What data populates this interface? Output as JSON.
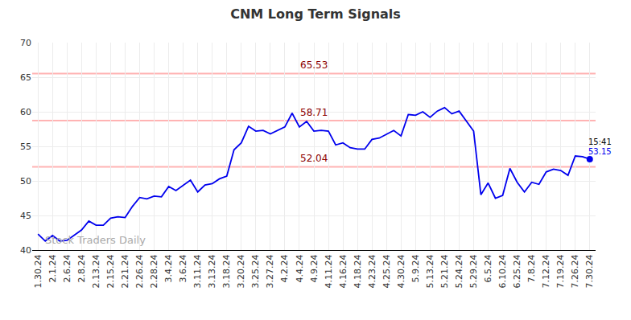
{
  "chart_data": {
    "type": "line",
    "title": "CNM Long Term Signals",
    "categories": [
      "1.30.24",
      null,
      "2.1.24",
      null,
      "2.6.24",
      null,
      "2.8.24",
      null,
      "2.13.24",
      null,
      "2.15.24",
      null,
      "2.21.24",
      null,
      "2.26.24",
      null,
      "2.28.24",
      null,
      "3.4.24",
      null,
      "3.6.24",
      null,
      "3.11.24",
      null,
      "3.13.24",
      null,
      "3.18.24",
      null,
      "3.20.24",
      null,
      "3.25.24",
      null,
      "3.27.24",
      null,
      "4.2.24",
      null,
      "4.4.24",
      null,
      "4.9.24",
      null,
      "4.11.24",
      null,
      "4.16.24",
      null,
      "4.18.24",
      null,
      "4.23.24",
      null,
      "4.25.24",
      null,
      "4.30.24",
      null,
      "5.9.24",
      null,
      "5.13.24",
      null,
      "5.21.24",
      null,
      "5.24.24",
      null,
      "5.29.24",
      null,
      "6.5.24",
      null,
      "6.10.24",
      null,
      "6.25.24",
      null,
      "7.8.24",
      null,
      "7.12.24",
      null,
      "7.19.24",
      null,
      "7.26.24",
      null,
      "7.30.24"
    ],
    "values": [
      42.3,
      41.3,
      42.1,
      41.3,
      41.4,
      42.1,
      42.9,
      44.2,
      43.6,
      43.6,
      44.6,
      44.8,
      44.7,
      46.3,
      47.6,
      47.4,
      47.8,
      47.7,
      49.2,
      48.6,
      49.4,
      50.1,
      48.4,
      49.4,
      49.6,
      50.3,
      50.7,
      54.5,
      55.5,
      57.9,
      57.2,
      57.3,
      56.8,
      57.3,
      57.8,
      59.8,
      57.8,
      58.6,
      57.2,
      57.3,
      57.2,
      55.2,
      55.5,
      54.8,
      54.6,
      54.6,
      56.0,
      56.2,
      56.8,
      57.3,
      56.5,
      59.6,
      59.5,
      60.0,
      59.2,
      60.1,
      60.6,
      59.7,
      60.1,
      58.6,
      57.2,
      48.0,
      49.7,
      47.5,
      47.9,
      51.8,
      49.8,
      48.4,
      49.8,
      49.5,
      51.3,
      51.7,
      51.5,
      50.8,
      53.6,
      53.5,
      53.15
    ],
    "color": "#0000ee",
    "ylim": [
      40,
      70
    ],
    "yticks": [
      40,
      45,
      50,
      55,
      60,
      65,
      70
    ],
    "grid": true,
    "levels": [
      65.53,
      58.71,
      52.04
    ],
    "level_color": "#ffb3b3",
    "level_label_color": "#8b0000",
    "last_time": "15:41",
    "watermark": "Stock Traders Daily"
  }
}
